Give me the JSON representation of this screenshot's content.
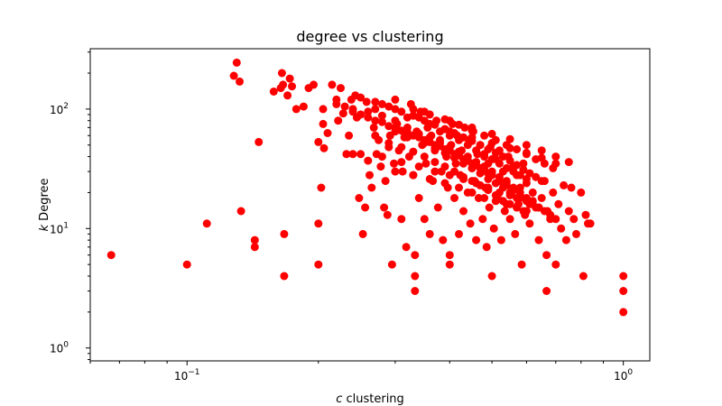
{
  "chart_data": {
    "type": "scatter",
    "title": "degree vs clustering",
    "xlabel": "c clustering",
    "ylabel": "k Degree",
    "xlabel_parts": {
      "var": "c",
      "rest": " clustering"
    },
    "ylabel_parts": {
      "var": "k",
      "rest": " Degree"
    },
    "xscale": "log",
    "yscale": "log",
    "xlim": [
      0.06,
      1.15
    ],
    "ylim": [
      0.78,
      320
    ],
    "x_major_ticks": [
      {
        "value": 0.1,
        "base": "10",
        "exp": "−1"
      },
      {
        "value": 1,
        "base": "10",
        "exp": "0"
      }
    ],
    "y_major_ticks": [
      {
        "value": 1,
        "base": "10",
        "exp": "0"
      },
      {
        "value": 10,
        "base": "10",
        "exp": "1"
      },
      {
        "value": 100,
        "base": "10",
        "exp": "2"
      }
    ],
    "grid": false,
    "marker_color": "#ff0000",
    "points": [
      [
        0.067,
        6
      ],
      [
        0.1,
        5
      ],
      [
        0.111,
        11
      ],
      [
        0.128,
        190
      ],
      [
        0.13,
        245
      ],
      [
        0.132,
        170
      ],
      [
        0.133,
        14
      ],
      [
        0.143,
        8
      ],
      [
        0.143,
        7
      ],
      [
        0.146,
        53
      ],
      [
        0.158,
        140
      ],
      [
        0.164,
        150
      ],
      [
        0.165,
        200
      ],
      [
        0.166,
        160
      ],
      [
        0.167,
        9
      ],
      [
        0.167,
        4
      ],
      [
        0.17,
        130
      ],
      [
        0.172,
        180
      ],
      [
        0.174,
        155
      ],
      [
        0.178,
        100
      ],
      [
        0.185,
        105
      ],
      [
        0.19,
        150
      ],
      [
        0.195,
        160
      ],
      [
        0.2,
        53
      ],
      [
        0.2,
        11
      ],
      [
        0.2,
        5
      ],
      [
        0.203,
        22
      ],
      [
        0.205,
        100
      ],
      [
        0.205,
        75
      ],
      [
        0.206,
        47
      ],
      [
        0.21,
        63
      ],
      [
        0.215,
        160
      ],
      [
        0.22,
        120
      ],
      [
        0.222,
        80
      ],
      [
        0.225,
        150
      ],
      [
        0.228,
        92
      ],
      [
        0.232,
        42
      ],
      [
        0.235,
        60
      ],
      [
        0.238,
        120
      ],
      [
        0.24,
        42
      ],
      [
        0.243,
        130
      ],
      [
        0.245,
        85
      ],
      [
        0.248,
        18
      ],
      [
        0.25,
        42
      ],
      [
        0.253,
        9
      ],
      [
        0.256,
        15
      ],
      [
        0.258,
        115
      ],
      [
        0.26,
        37
      ],
      [
        0.262,
        28
      ],
      [
        0.265,
        22
      ],
      [
        0.268,
        70
      ],
      [
        0.27,
        100
      ],
      [
        0.272,
        42
      ],
      [
        0.275,
        55
      ],
      [
        0.278,
        33
      ],
      [
        0.28,
        88
      ],
      [
        0.283,
        15
      ],
      [
        0.285,
        25
      ],
      [
        0.288,
        13
      ],
      [
        0.29,
        48
      ],
      [
        0.292,
        60
      ],
      [
        0.295,
        5
      ],
      [
        0.298,
        35
      ],
      [
        0.3,
        100
      ],
      [
        0.303,
        75
      ],
      [
        0.306,
        45
      ],
      [
        0.31,
        12
      ],
      [
        0.312,
        30
      ],
      [
        0.315,
        58
      ],
      [
        0.318,
        7
      ],
      [
        0.32,
        85
      ],
      [
        0.323,
        40
      ],
      [
        0.326,
        110
      ],
      [
        0.33,
        28
      ],
      [
        0.333,
        6
      ],
      [
        0.333,
        4
      ],
      [
        0.333,
        3
      ],
      [
        0.336,
        65
      ],
      [
        0.34,
        18
      ],
      [
        0.343,
        95
      ],
      [
        0.346,
        50
      ],
      [
        0.35,
        12
      ],
      [
        0.353,
        35
      ],
      [
        0.356,
        70
      ],
      [
        0.36,
        9
      ],
      [
        0.363,
        60
      ],
      [
        0.366,
        25
      ],
      [
        0.37,
        45
      ],
      [
        0.373,
        80
      ],
      [
        0.376,
        15
      ],
      [
        0.38,
        55
      ],
      [
        0.383,
        30
      ],
      [
        0.386,
        8
      ],
      [
        0.39,
        68
      ],
      [
        0.393,
        40
      ],
      [
        0.396,
        22
      ],
      [
        0.4,
        6
      ],
      [
        0.4,
        5
      ],
      [
        0.403,
        50
      ],
      [
        0.406,
        75
      ],
      [
        0.41,
        18
      ],
      [
        0.413,
        35
      ],
      [
        0.416,
        60
      ],
      [
        0.42,
        9
      ],
      [
        0.423,
        28
      ],
      [
        0.426,
        45
      ],
      [
        0.43,
        14
      ],
      [
        0.433,
        70
      ],
      [
        0.436,
        38
      ],
      [
        0.44,
        20
      ],
      [
        0.443,
        55
      ],
      [
        0.446,
        11
      ],
      [
        0.45,
        32
      ],
      [
        0.453,
        65
      ],
      [
        0.456,
        25
      ],
      [
        0.46,
        8
      ],
      [
        0.463,
        42
      ],
      [
        0.466,
        18
      ],
      [
        0.47,
        50
      ],
      [
        0.473,
        30
      ],
      [
        0.476,
        12
      ],
      [
        0.48,
        40
      ],
      [
        0.483,
        22
      ],
      [
        0.486,
        7
      ],
      [
        0.49,
        35
      ],
      [
        0.493,
        15
      ],
      [
        0.496,
        48
      ],
      [
        0.5,
        4
      ],
      [
        0.5,
        28
      ],
      [
        0.505,
        10
      ],
      [
        0.51,
        38
      ],
      [
        0.515,
        18
      ],
      [
        0.52,
        45
      ],
      [
        0.525,
        8
      ],
      [
        0.53,
        30
      ],
      [
        0.535,
        14
      ],
      [
        0.54,
        25
      ],
      [
        0.545,
        40
      ],
      [
        0.55,
        12
      ],
      [
        0.555,
        20
      ],
      [
        0.56,
        33
      ],
      [
        0.565,
        9
      ],
      [
        0.57,
        28
      ],
      [
        0.575,
        16
      ],
      [
        0.58,
        22
      ],
      [
        0.585,
        5
      ],
      [
        0.59,
        35
      ],
      [
        0.595,
        13
      ],
      [
        0.6,
        24
      ],
      [
        0.61,
        11
      ],
      [
        0.62,
        20
      ],
      [
        0.63,
        15
      ],
      [
        0.64,
        8
      ],
      [
        0.65,
        18
      ],
      [
        0.66,
        25
      ],
      [
        0.667,
        6
      ],
      [
        0.667,
        3
      ],
      [
        0.68,
        12
      ],
      [
        0.69,
        20
      ],
      [
        0.7,
        5
      ],
      [
        0.71,
        16
      ],
      [
        0.72,
        10
      ],
      [
        0.73,
        23
      ],
      [
        0.74,
        8
      ],
      [
        0.75,
        14
      ],
      [
        0.76,
        22
      ],
      [
        0.77,
        12
      ],
      [
        0.78,
        9
      ],
      [
        0.8,
        20
      ],
      [
        0.81,
        4
      ],
      [
        0.82,
        13
      ],
      [
        0.83,
        11
      ],
      [
        0.84,
        11
      ],
      [
        1.0,
        4
      ],
      [
        1.0,
        3
      ],
      [
        1.0,
        2
      ],
      [
        0.26,
        95
      ],
      [
        0.28,
        110
      ],
      [
        0.3,
        80
      ],
      [
        0.32,
        70
      ],
      [
        0.34,
        85
      ],
      [
        0.36,
        75
      ],
      [
        0.38,
        65
      ],
      [
        0.4,
        60
      ],
      [
        0.42,
        55
      ],
      [
        0.44,
        50
      ],
      [
        0.46,
        45
      ],
      [
        0.48,
        42
      ],
      [
        0.5,
        38
      ],
      [
        0.52,
        35
      ],
      [
        0.54,
        32
      ],
      [
        0.56,
        30
      ],
      [
        0.58,
        28
      ],
      [
        0.6,
        26
      ],
      [
        0.27,
        60
      ],
      [
        0.29,
        52
      ],
      [
        0.31,
        48
      ],
      [
        0.33,
        44
      ],
      [
        0.35,
        40
      ],
      [
        0.37,
        36
      ],
      [
        0.39,
        33
      ],
      [
        0.41,
        30
      ],
      [
        0.43,
        27
      ],
      [
        0.45,
        25
      ],
      [
        0.47,
        23
      ],
      [
        0.49,
        21
      ],
      [
        0.51,
        19
      ],
      [
        0.53,
        17
      ],
      [
        0.55,
        16
      ],
      [
        0.57,
        15
      ],
      [
        0.59,
        14
      ],
      [
        0.34,
        62
      ],
      [
        0.36,
        58
      ],
      [
        0.38,
        52
      ],
      [
        0.4,
        48
      ],
      [
        0.42,
        44
      ],
      [
        0.44,
        40
      ],
      [
        0.46,
        36
      ],
      [
        0.48,
        33
      ],
      [
        0.5,
        30
      ],
      [
        0.52,
        27
      ],
      [
        0.54,
        24
      ],
      [
        0.56,
        22
      ],
      [
        0.58,
        20
      ],
      [
        0.6,
        18
      ],
      [
        0.62,
        17
      ],
      [
        0.3,
        65
      ],
      [
        0.32,
        58
      ],
      [
        0.35,
        52
      ],
      [
        0.37,
        47
      ],
      [
        0.39,
        43
      ],
      [
        0.41,
        39
      ],
      [
        0.43,
        35
      ],
      [
        0.45,
        32
      ],
      [
        0.47,
        29
      ],
      [
        0.49,
        26
      ],
      [
        0.51,
        24
      ],
      [
        0.53,
        22
      ],
      [
        0.55,
        20
      ],
      [
        0.57,
        18
      ],
      [
        0.24,
        100
      ],
      [
        0.25,
        90
      ],
      [
        0.27,
        80
      ],
      [
        0.29,
        72
      ],
      [
        0.31,
        66
      ],
      [
        0.33,
        60
      ],
      [
        0.35,
        55
      ],
      [
        0.37,
        50
      ],
      [
        0.39,
        46
      ],
      [
        0.41,
        42
      ],
      [
        0.43,
        38
      ],
      [
        0.45,
        35
      ],
      [
        0.47,
        32
      ],
      [
        0.49,
        29
      ],
      [
        0.22,
        110
      ],
      [
        0.23,
        105
      ],
      [
        0.24,
        95
      ],
      [
        0.26,
        85
      ],
      [
        0.28,
        78
      ],
      [
        0.3,
        70
      ],
      [
        0.32,
        64
      ],
      [
        0.34,
        58
      ],
      [
        0.36,
        53
      ],
      [
        0.38,
        49
      ],
      [
        0.4,
        45
      ],
      [
        0.42,
        41
      ],
      [
        0.44,
        37
      ],
      [
        0.46,
        34
      ],
      [
        0.48,
        31
      ],
      [
        0.5,
        28
      ],
      [
        0.52,
        25
      ],
      [
        0.54,
        23
      ],
      [
        0.56,
        21
      ],
      [
        0.58,
        19
      ],
      [
        0.6,
        17
      ],
      [
        0.62,
        16
      ],
      [
        0.64,
        15
      ],
      [
        0.66,
        14
      ],
      [
        0.68,
        13
      ],
      [
        0.7,
        12
      ],
      [
        0.25,
        125
      ],
      [
        0.27,
        115
      ],
      [
        0.29,
        105
      ],
      [
        0.31,
        95
      ],
      [
        0.33,
        88
      ],
      [
        0.35,
        80
      ],
      [
        0.37,
        74
      ],
      [
        0.39,
        68
      ],
      [
        0.41,
        63
      ],
      [
        0.43,
        58
      ],
      [
        0.45,
        54
      ],
      [
        0.47,
        50
      ],
      [
        0.49,
        46
      ],
      [
        0.51,
        43
      ],
      [
        0.53,
        40
      ],
      [
        0.55,
        37
      ],
      [
        0.57,
        34
      ],
      [
        0.59,
        31
      ],
      [
        0.61,
        29
      ],
      [
        0.63,
        27
      ],
      [
        0.65,
        25
      ],
      [
        0.3,
        120
      ],
      [
        0.33,
        100
      ],
      [
        0.36,
        90
      ],
      [
        0.39,
        82
      ],
      [
        0.42,
        74
      ],
      [
        0.45,
        66
      ],
      [
        0.48,
        60
      ],
      [
        0.51,
        55
      ],
      [
        0.54,
        50
      ],
      [
        0.57,
        46
      ],
      [
        0.6,
        42
      ],
      [
        0.63,
        38
      ],
      [
        0.66,
        35
      ],
      [
        0.69,
        32
      ],
      [
        0.35,
        95
      ],
      [
        0.4,
        80
      ],
      [
        0.45,
        70
      ],
      [
        0.5,
        62
      ],
      [
        0.55,
        56
      ],
      [
        0.6,
        50
      ],
      [
        0.65,
        45
      ],
      [
        0.7,
        40
      ],
      [
        0.75,
        36
      ],
      [
        0.4,
        65
      ],
      [
        0.45,
        58
      ],
      [
        0.5,
        52
      ],
      [
        0.55,
        47
      ],
      [
        0.6,
        43
      ],
      [
        0.65,
        39
      ],
      [
        0.7,
        35
      ],
      [
        0.3,
        30
      ],
      [
        0.33,
        28
      ],
      [
        0.36,
        26
      ],
      [
        0.39,
        24
      ],
      [
        0.42,
        22
      ],
      [
        0.45,
        20
      ],
      [
        0.48,
        18
      ],
      [
        0.51,
        17
      ],
      [
        0.54,
        16
      ],
      [
        0.57,
        15
      ],
      [
        0.6,
        14
      ],
      [
        0.28,
        40
      ],
      [
        0.31,
        36
      ],
      [
        0.34,
        33
      ],
      [
        0.37,
        30
      ],
      [
        0.4,
        28
      ],
      [
        0.43,
        26
      ],
      [
        0.46,
        24
      ],
      [
        0.49,
        22
      ],
      [
        0.52,
        20
      ],
      [
        0.55,
        19
      ],
      [
        0.58,
        18
      ],
      [
        0.61,
        16
      ],
      [
        0.64,
        15
      ],
      [
        0.67,
        14
      ]
    ]
  }
}
